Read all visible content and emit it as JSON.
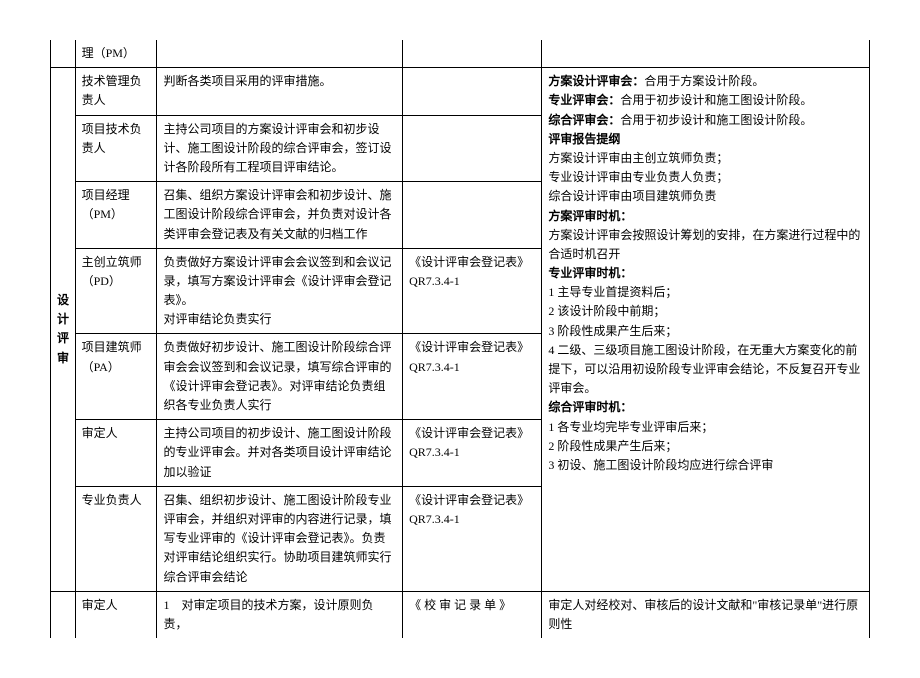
{
  "category": "设计评审",
  "topRow": {
    "role": "理（PM）"
  },
  "rows": [
    {
      "role": "技术管理负责人",
      "duty": "判断各类项目采用的评审措施。",
      "doc": ""
    },
    {
      "role": "项目技术负责人",
      "duty": "主持公司项目的方案设计评审会和初步设计、施工图设计阶段的综合评审会，签订设计各阶段所有工程项目评审结论。",
      "doc": ""
    },
    {
      "role": "项目经理（PM）",
      "duty": "召集、组织方案设计评审会和初步设计、施工图设计阶段综合评审会，并负责对设计各类评审会登记表及有关文献的归档工作",
      "doc": ""
    },
    {
      "role": "主创立筑师（PD）",
      "duty": "负责做好方案设计评审会会议签到和会议记录，填写方案设计评审会《设计评审会登记表》。\n对评审结论负责实行",
      "doc": "《设计评审会登记表》QR7.3.4-1"
    },
    {
      "role": "项目建筑师（PA）",
      "duty": "负责做好初步设计、施工图设计阶段综合评审会会议签到和会议记录，填写综合评审的《设计评审会登记表》。对评审结论负责组织各专业负责人实行",
      "doc": "《设计评审会登记表》QR7.3.4-1"
    },
    {
      "role": "审定人",
      "duty": "主持公司项目的初步设计、施工图设计阶段的专业评审会。并对各类项目设计评审结论加以验证",
      "doc": "《设计评审会登记表》QR7.3.4-1"
    },
    {
      "role": "专业负责人",
      "duty": "召集、组织初步设计、施工图设计阶段专业评审会，并组织对评审的内容进行记录，填写专业评审的《设计评审会登记表》。负责对评审结论组织实行。协助项目建筑师实行综合评审会结论",
      "doc": "《设计评审会登记表》QR7.3.4-1"
    }
  ],
  "notes": {
    "l1a": "方案设计评审会：",
    "l1b": "合用于方案设计阶段。",
    "l2a": "专业评审会：",
    "l2b": "合用于初步设计和施工图设计阶段。",
    "l3a": "综合评审会：",
    "l3b": "合用于初步设计和施工图设计阶段。",
    "h1": "评审报告提纲",
    "p1": "方案设计评审由主创立筑师负责；",
    "p2": "专业设计评审由专业负责人负责；",
    "p3": "综合设计评审由项目建筑师负责",
    "h2": "方案评审时机：",
    "p4": "方案设计评审会按照设计筹划的安排，在方案进行过程中的合适时机召开",
    "h3": "专业评审时机：",
    "p5": "1 主导专业首提资料后；",
    "p6": "2 该设计阶段中前期；",
    "p7": "3 阶段性成果产生后来；",
    "p8": "4 二级、三级项目施工图设计阶段，在无重大方案变化的前提下，可以沿用初设阶段专业评审会结论，不反复召开专业评审会。",
    "h4": "综合评审时机：",
    "p9": "1 各专业均完毕专业评审后来；",
    "p10": "2 阶段性成果产生后来；",
    "p11": "3 初设、施工图设计阶段均应进行综合评审"
  },
  "bottom": {
    "role": "审定人",
    "duty": "1　对审定项目的技术方案，设计原则负责，",
    "doc": "《 校 审 记 录 单 》",
    "note": "审定人对经校对、审核后的设计文献和\"审核记录单\"进行原则性"
  }
}
